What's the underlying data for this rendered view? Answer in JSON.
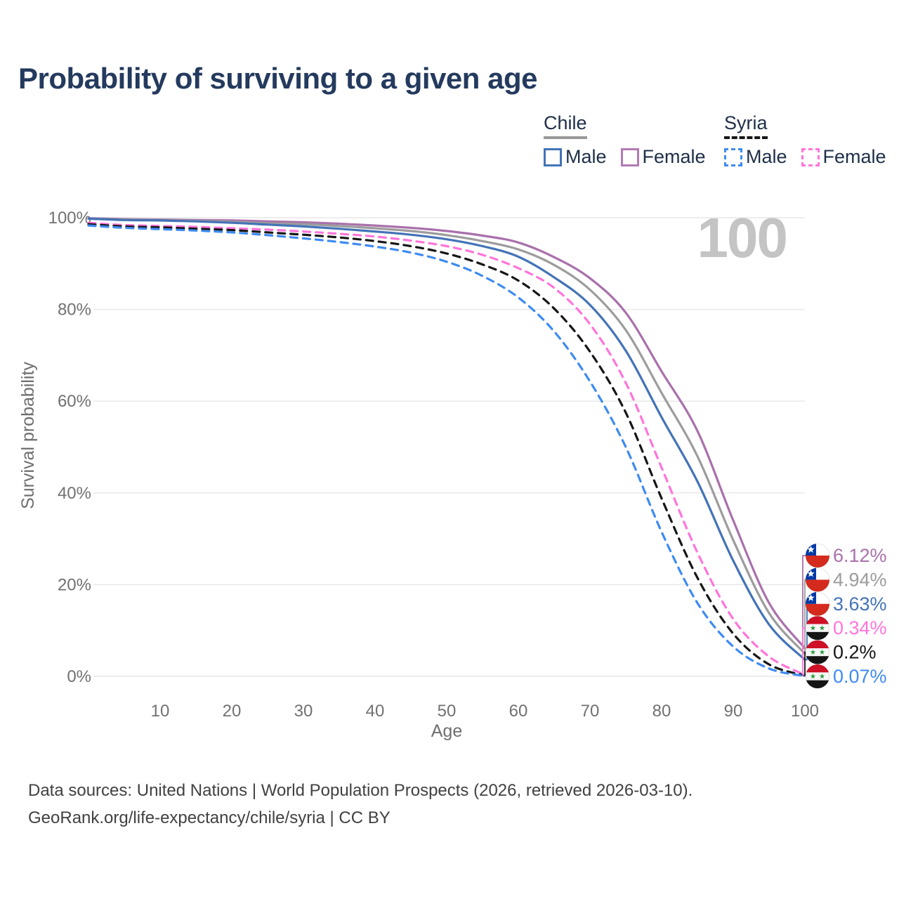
{
  "title": "Probability of surviving to a given age",
  "legend": {
    "groups": [
      {
        "country": "Chile",
        "underline_style": "solid",
        "underline_color": "#999999",
        "items": [
          {
            "label": "Male",
            "color": "#4373b7",
            "dashed": false
          },
          {
            "label": "Female",
            "color": "#b37ab5",
            "dashed": false
          }
        ]
      },
      {
        "country": "Syria",
        "underline_style": "dashed",
        "underline_color": "#161616",
        "items": [
          {
            "label": "Male",
            "color": "#3e8bf2",
            "dashed": true
          },
          {
            "label": "Female",
            "color": "#ff75da",
            "dashed": true
          }
        ]
      }
    ]
  },
  "chart_data": {
    "type": "line",
    "title": "Probability of surviving to a given age",
    "xlabel": "Age",
    "ylabel": "Survival probability",
    "watermark": "100",
    "xlim": [
      0,
      100
    ],
    "ylim": [
      0,
      100
    ],
    "grid": "horizontal-only",
    "x_ticks": [
      10,
      20,
      30,
      40,
      50,
      60,
      70,
      80,
      90,
      100
    ],
    "y_gridlines": [
      0,
      20,
      40,
      60,
      80,
      100
    ],
    "y_ticks": [
      "0%",
      "20%",
      "40%",
      "60%",
      "80%",
      "100%"
    ],
    "ages": [
      0,
      5,
      10,
      15,
      20,
      25,
      30,
      35,
      40,
      45,
      50,
      55,
      60,
      65,
      70,
      75,
      80,
      85,
      90,
      95,
      100
    ],
    "series": [
      {
        "id": "chile-female",
        "name": "Chile Female",
        "country": "Chile",
        "sex": "Female",
        "color": "#a970ab",
        "dashed": false,
        "flag": "chile",
        "end_label": "6.12%",
        "values": [
          99.9,
          99.7,
          99.6,
          99.5,
          99.4,
          99.2,
          99.0,
          98.7,
          98.3,
          97.8,
          97.1,
          96.1,
          94.6,
          91.4,
          86.8,
          79.3,
          66.5,
          53.5,
          34.0,
          16.0,
          6.12
        ]
      },
      {
        "id": "chile-both",
        "name": "Chile Both sexes",
        "country": "Chile",
        "sex": "Both",
        "color": "#9c9c9c",
        "dashed": false,
        "flag": "chile",
        "end_label": "4.94%",
        "values": [
          99.8,
          99.6,
          99.5,
          99.3,
          99.1,
          98.8,
          98.6,
          98.2,
          97.7,
          97.1,
          96.2,
          94.9,
          93.1,
          89.7,
          84.3,
          75.5,
          61.8,
          48.0,
          29.7,
          13.8,
          4.94
        ]
      },
      {
        "id": "chile-male",
        "name": "Chile Male",
        "country": "Chile",
        "sex": "Male",
        "color": "#4373b7",
        "dashed": false,
        "flag": "chile",
        "end_label": "3.63%",
        "values": [
          99.8,
          99.5,
          99.4,
          99.2,
          98.9,
          98.5,
          98.1,
          97.6,
          97.0,
          96.3,
          95.3,
          93.8,
          91.5,
          87.0,
          81.0,
          71.0,
          56.5,
          42.5,
          25.2,
          11.3,
          3.63
        ]
      },
      {
        "id": "syria-female",
        "name": "Syria Female",
        "country": "Syria",
        "sex": "Female",
        "color": "#ff75da",
        "dashed": true,
        "flag": "syria",
        "end_label": "0.34%",
        "values": [
          98.9,
          98.4,
          98.2,
          98.0,
          97.7,
          97.4,
          97.0,
          96.5,
          95.9,
          95.0,
          93.8,
          91.9,
          89.0,
          84.7,
          76.8,
          64.0,
          45.5,
          27.0,
          12.5,
          4.3,
          0.34
        ]
      },
      {
        "id": "syria-both",
        "name": "Syria Both sexes",
        "country": "Syria",
        "sex": "Both",
        "color": "#161616",
        "dashed": true,
        "flag": "syria",
        "end_label": "0.2%",
        "values": [
          98.6,
          98.1,
          97.9,
          97.6,
          97.3,
          96.8,
          96.3,
          95.7,
          94.9,
          93.8,
          92.2,
          89.8,
          86.3,
          80.2,
          70.8,
          57.5,
          38.8,
          21.5,
          9.3,
          2.6,
          0.2
        ]
      },
      {
        "id": "syria-male",
        "name": "Syria Male",
        "country": "Syria",
        "sex": "Male",
        "color": "#3e8bf2",
        "dashed": true,
        "flag": "syria",
        "end_label": "0.07%",
        "values": [
          98.3,
          97.8,
          97.5,
          97.2,
          96.8,
          96.2,
          95.5,
          94.7,
          93.7,
          92.4,
          90.4,
          87.3,
          82.6,
          75.2,
          64.3,
          50.0,
          31.5,
          16.0,
          6.5,
          1.7,
          0.07
        ]
      }
    ]
  },
  "footer": {
    "line1": "Data sources: United Nations | World Population Prospects (2026, retrieved 2026-03-10).",
    "line2": "GeoRank.org/life-expectancy/chile/syria | CC BY"
  }
}
